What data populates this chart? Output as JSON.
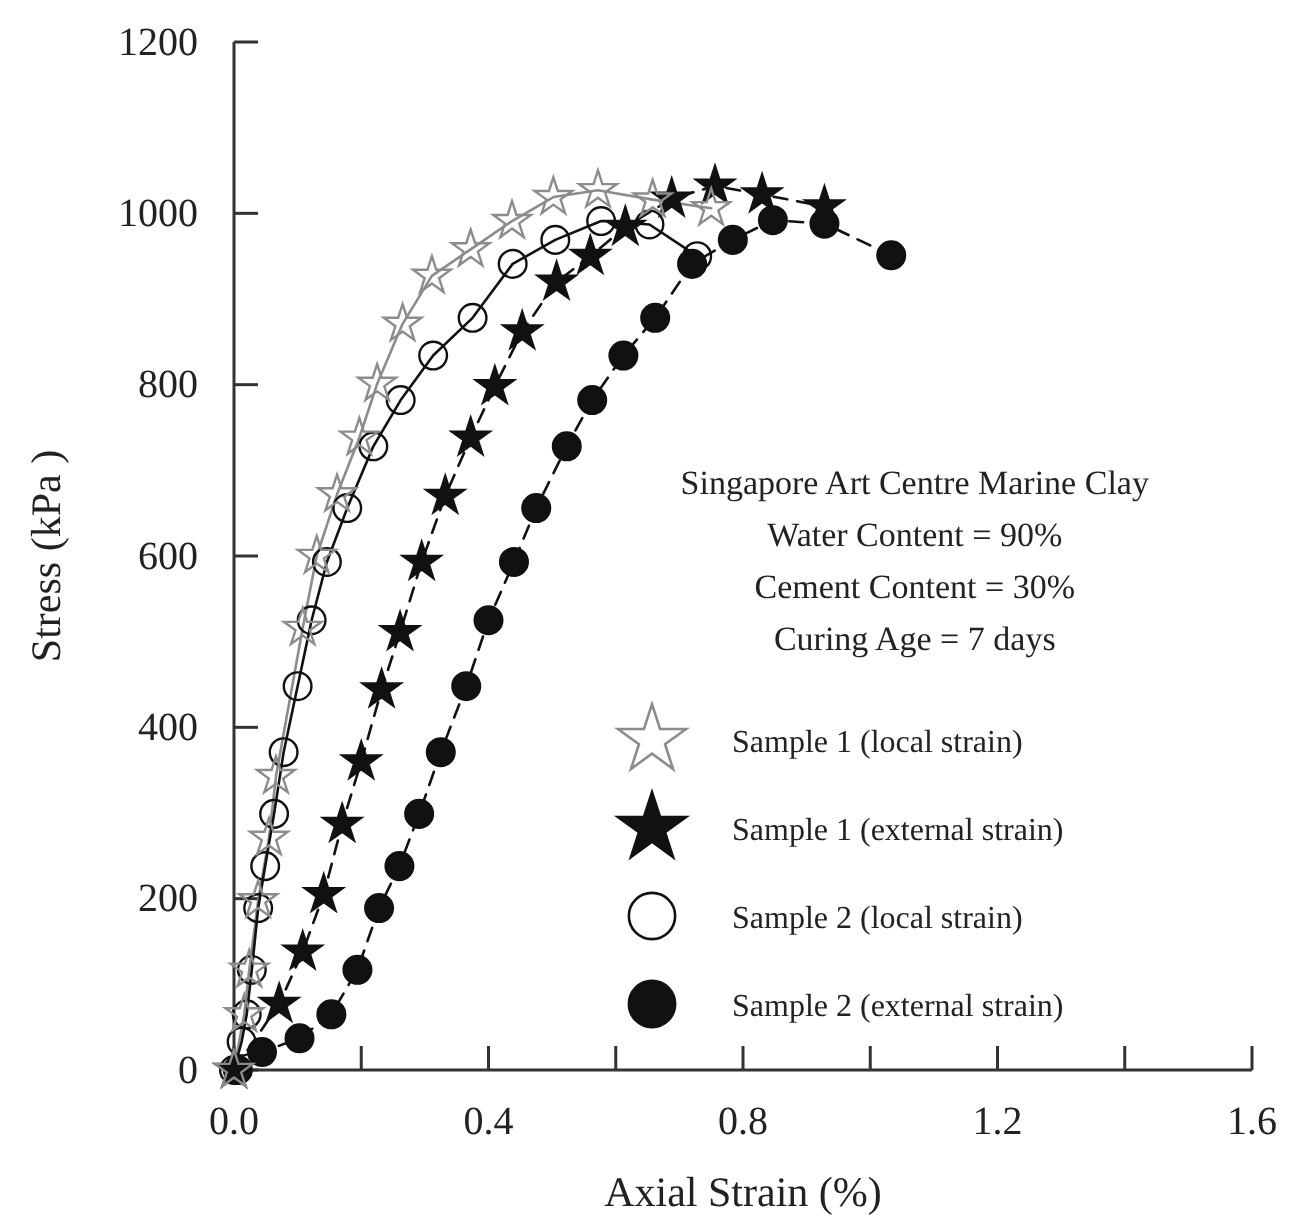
{
  "chart_data": {
    "type": "line",
    "xlabel": "Axial Strain (%)",
    "ylabel": "Stress (kPa )",
    "xlim": [
      0,
      1.6
    ],
    "ylim": [
      0,
      1200
    ],
    "xticks": [
      {
        "value": 0,
        "label": "0.0"
      },
      {
        "value": 0.2,
        "label": null
      },
      {
        "value": 0.4,
        "label": "0.4"
      },
      {
        "value": 0.6,
        "label": null
      },
      {
        "value": 0.8,
        "label": "0.8"
      },
      {
        "value": 1.0,
        "label": null
      },
      {
        "value": 1.2,
        "label": "1.2"
      },
      {
        "value": 1.4,
        "label": null
      },
      {
        "value": 1.6,
        "label": "1.6"
      }
    ],
    "yticks": [
      0,
      200,
      400,
      600,
      800,
      1000,
      1200
    ],
    "grid": false,
    "legend": "bottom right",
    "annotations": [
      "Singapore Art Centre Marine Clay",
      "Water Content = 90%",
      "Cement Content = 30%",
      "Curing Age = 7 days"
    ],
    "series": [
      {
        "name": "Sample 1 (local strain)",
        "color": "#8c8c8c",
        "marker": "star",
        "line_style": "solid",
        "x": [
          0,
          0.016,
          0.024,
          0.038,
          0.055,
          0.066,
          0.108,
          0.13,
          0.162,
          0.197,
          0.225,
          0.265,
          0.311,
          0.372,
          0.437,
          0.502,
          0.572,
          0.658,
          0.75
        ],
        "values": [
          0,
          65,
          117,
          198,
          271,
          343,
          516,
          600,
          672,
          738,
          801,
          871,
          927,
          958,
          991,
          1019,
          1027,
          1016,
          1006
        ]
      },
      {
        "name": "Sample 1 (external strain)",
        "color": "#111111",
        "marker": "star",
        "line_style": "dashed",
        "x": [
          0,
          0.071,
          0.108,
          0.141,
          0.17,
          0.2,
          0.232,
          0.261,
          0.295,
          0.332,
          0.372,
          0.41,
          0.453,
          0.507,
          0.56,
          0.615,
          0.688,
          0.756,
          0.83,
          0.928
        ],
        "values": [
          0,
          77,
          138,
          205,
          287,
          360,
          444,
          511,
          593,
          670,
          738,
          798,
          862,
          920,
          950,
          984,
          1017,
          1032,
          1022,
          1008
        ]
      },
      {
        "name": "Sample 2 (local strain)",
        "color": "#111111",
        "marker": "circle",
        "line_style": "solid",
        "x": [
          0,
          0.012,
          0.02,
          0.028,
          0.038,
          0.049,
          0.063,
          0.078,
          0.1,
          0.122,
          0.146,
          0.178,
          0.219,
          0.262,
          0.313,
          0.375,
          0.438,
          0.505,
          0.577,
          0.653,
          0.728
        ],
        "values": [
          0,
          33,
          65,
          117,
          189,
          238,
          299,
          371,
          448,
          525,
          593,
          656,
          728,
          782,
          834,
          878,
          941,
          969,
          991,
          987,
          950
        ]
      },
      {
        "name": "Sample 2 (external strain)",
        "color": "#111111",
        "marker": "circle",
        "line_style": "dashed",
        "x": [
          0.006,
          0.044,
          0.103,
          0.153,
          0.194,
          0.228,
          0.26,
          0.291,
          0.325,
          0.365,
          0.4,
          0.44,
          0.475,
          0.523,
          0.563,
          0.612,
          0.662,
          0.72,
          0.784,
          0.847,
          0.928,
          1.033
        ],
        "values": [
          0,
          21,
          37,
          65,
          117,
          189,
          238,
          299,
          371,
          448,
          525,
          593,
          656,
          728,
          782,
          834,
          878,
          941,
          969,
          992,
          988,
          951
        ]
      }
    ]
  }
}
